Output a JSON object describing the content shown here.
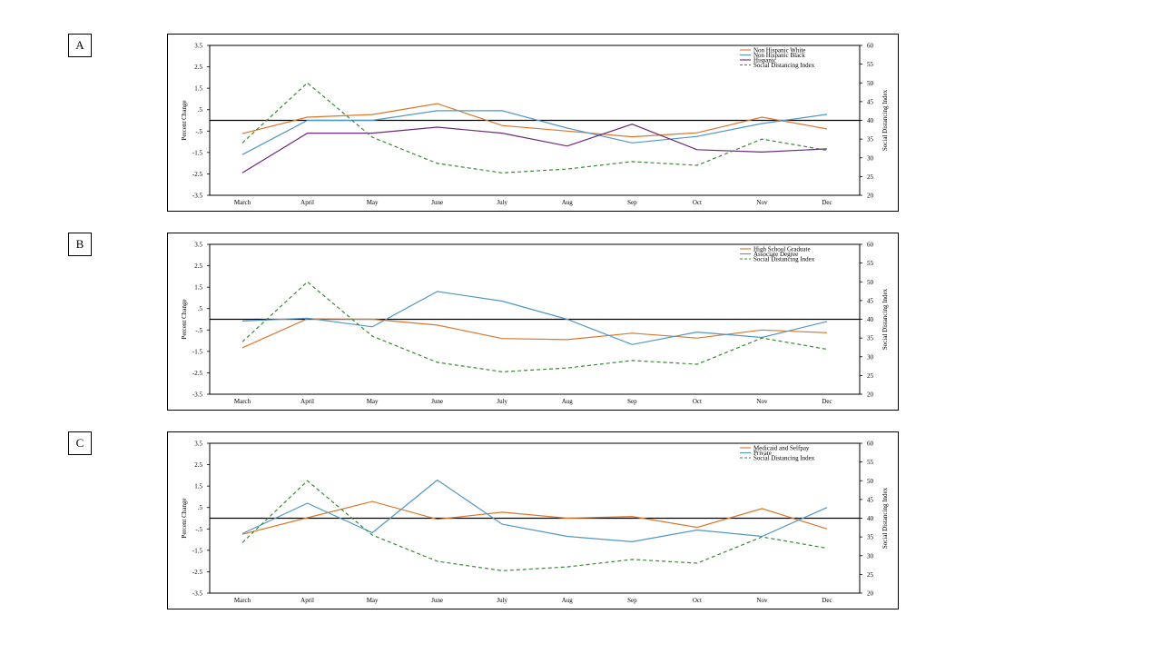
{
  "panels": [
    {
      "label": "A"
    },
    {
      "label": "B"
    },
    {
      "label": "C"
    }
  ],
  "colors": {
    "orange": "#d9772e",
    "blue": "#4f97c6",
    "purple": "#6b2a7a",
    "green": "#3a8a35",
    "axis": "#000000"
  },
  "chart_data": [
    {
      "type": "line",
      "panel": "A",
      "categories": [
        "March",
        "April",
        "May",
        "June",
        "July",
        "Aug",
        "Sep",
        "Oct",
        "Nov",
        "Dec"
      ],
      "ylabel": "Percent Change",
      "y2label": "Social Distancing Index",
      "ylim": [
        -3.5,
        3.5
      ],
      "yticks": [
        "3.5",
        "2.5",
        "1.5",
        ".5",
        "-.5",
        "-1.5",
        "-2.5",
        "-3.5"
      ],
      "y2lim": [
        20,
        60
      ],
      "y2ticks": [
        "60",
        "55",
        "50",
        "45",
        "40",
        "35",
        "30",
        "25",
        "20"
      ],
      "legend_position": "top-right",
      "series": [
        {
          "name": "Non Hispanic White",
          "axis": "left",
          "color": "orange",
          "dash": false,
          "values": [
            -0.62,
            0.15,
            0.27,
            0.78,
            -0.24,
            -0.5,
            -0.77,
            -0.58,
            0.15,
            -0.4
          ]
        },
        {
          "name": "Non Hispanic Black",
          "axis": "left",
          "color": "blue",
          "dash": false,
          "values": [
            -1.6,
            0.0,
            0.0,
            0.45,
            0.45,
            -0.36,
            -1.05,
            -0.75,
            -0.15,
            0.28
          ]
        },
        {
          "name": "Hispanic",
          "axis": "left",
          "color": "purple",
          "dash": false,
          "values": [
            -2.45,
            -0.6,
            -0.6,
            -0.32,
            -0.6,
            -1.2,
            -0.18,
            -1.37,
            -1.48,
            -1.33
          ]
        },
        {
          "name": "Social Distancing Index",
          "axis": "right",
          "color": "green",
          "dash": true,
          "values": [
            34,
            50,
            35.5,
            28.5,
            26,
            27,
            29,
            28,
            35,
            32
          ]
        }
      ]
    },
    {
      "type": "line",
      "panel": "B",
      "categories": [
        "March",
        "April",
        "May",
        "June",
        "July",
        "Aug",
        "Sep",
        "Oct",
        "Nov",
        "Dec"
      ],
      "ylabel": "Percent Change",
      "y2label": "Social Distancing Index",
      "ylim": [
        -3.5,
        3.5
      ],
      "yticks": [
        "3.5",
        "2.5",
        "1.5",
        ".5",
        "-.5",
        "-1.5",
        "-2.5",
        "-3.5"
      ],
      "y2lim": [
        20,
        60
      ],
      "y2ticks": [
        "60",
        "55",
        "50",
        "45",
        "40",
        "35",
        "30",
        "25",
        "20"
      ],
      "legend_position": "top-right",
      "series": [
        {
          "name": "High School Graduate",
          "axis": "left",
          "color": "orange",
          "dash": false,
          "values": [
            -1.33,
            0.02,
            0.0,
            -0.27,
            -0.9,
            -0.95,
            -0.65,
            -0.88,
            -0.5,
            -0.63
          ]
        },
        {
          "name": "Associate Degree",
          "axis": "left",
          "color": "blue",
          "dash": false,
          "values": [
            -0.08,
            0.05,
            -0.35,
            1.3,
            0.85,
            0.0,
            -1.18,
            -0.6,
            -0.85,
            -0.1
          ]
        },
        {
          "name": "Social Distancing Index",
          "axis": "right",
          "color": "green",
          "dash": true,
          "values": [
            34,
            50,
            35.5,
            28.5,
            26,
            27,
            29,
            28,
            35,
            32
          ]
        }
      ]
    },
    {
      "type": "line",
      "panel": "C",
      "categories": [
        "March",
        "April",
        "May",
        "June",
        "July",
        "Aug",
        "Sep",
        "Oct",
        "Nov",
        "Dec"
      ],
      "ylabel": "Percent Change",
      "y2label": "Social Distancing Index",
      "ylim": [
        -3.5,
        3.5
      ],
      "yticks": [
        "3.5",
        "2.5",
        "1.5",
        ".5",
        "-.5",
        "-1.5",
        "-2.5",
        "-3.5"
      ],
      "y2lim": [
        20,
        60
      ],
      "y2ticks": [
        "60",
        "55",
        "50",
        "45",
        "40",
        "35",
        "30",
        "25",
        "20"
      ],
      "legend_position": "top-right",
      "series": [
        {
          "name": "Medicaid and Selfpay",
          "axis": "left",
          "color": "orange",
          "dash": false,
          "values": [
            -0.75,
            0.02,
            0.78,
            -0.05,
            0.28,
            0.0,
            0.08,
            -0.43,
            0.45,
            -0.5
          ]
        },
        {
          "name": "Private",
          "axis": "left",
          "color": "blue",
          "dash": false,
          "values": [
            -0.72,
            0.7,
            -0.68,
            1.78,
            -0.28,
            -0.85,
            -1.1,
            -0.55,
            -0.85,
            0.5
          ]
        },
        {
          "name": "Social Distancing Index",
          "axis": "right",
          "color": "green",
          "dash": true,
          "values": [
            33.5,
            50,
            35.5,
            28.5,
            26,
            27,
            29,
            28,
            35,
            32
          ]
        }
      ]
    }
  ]
}
